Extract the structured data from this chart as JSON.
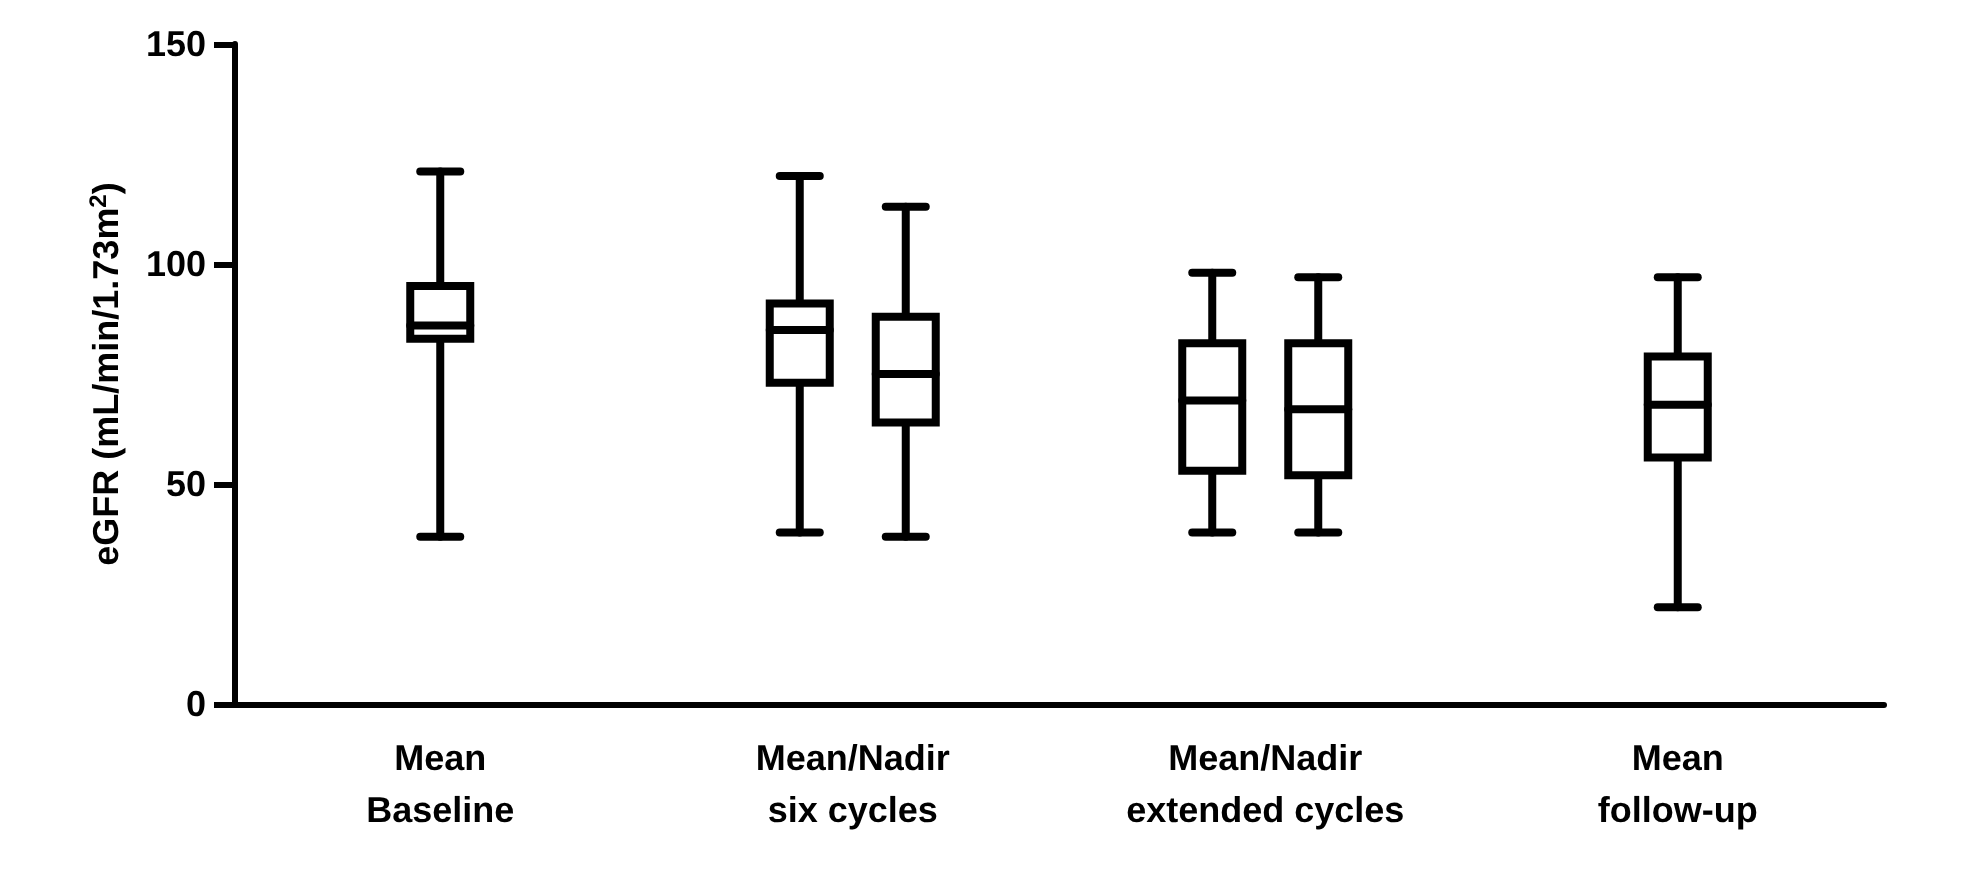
{
  "chart_data": {
    "type": "box",
    "ylabel": "eGFR (mL/min/1.73m$^{2}$)",
    "categories": [
      "Mean\nBaseline",
      "Mean/Nadir\nsix cycles",
      "Mean/Nadir\nextended cycles",
      "Mean\nfollow-up"
    ],
    "series": [
      {
        "color": "#000000",
        "boxes": [
          {
            "low": 38,
            "q1": 83,
            "median": 86,
            "q3": 95,
            "high": 121
          },
          {
            "low": 39,
            "q1": 73,
            "median": 85,
            "q3": 91,
            "high": 120
          },
          {
            "low": 39,
            "q1": 53,
            "median": 69,
            "q3": 82,
            "high": 98
          },
          {
            "low": 22,
            "q1": 56,
            "median": 68,
            "q3": 79,
            "high": 97
          }
        ]
      },
      {
        "color": "#000000",
        "boxes": [
          null,
          {
            "low": 38,
            "q1": 64,
            "median": 75,
            "q3": 88,
            "high": 113
          },
          {
            "low": 39,
            "q1": 52,
            "median": 67,
            "q3": 82,
            "high": 97
          },
          null
        ]
      }
    ],
    "ylim": [
      0,
      150
    ],
    "yticks": [
      0,
      50,
      100,
      150
    ]
  }
}
